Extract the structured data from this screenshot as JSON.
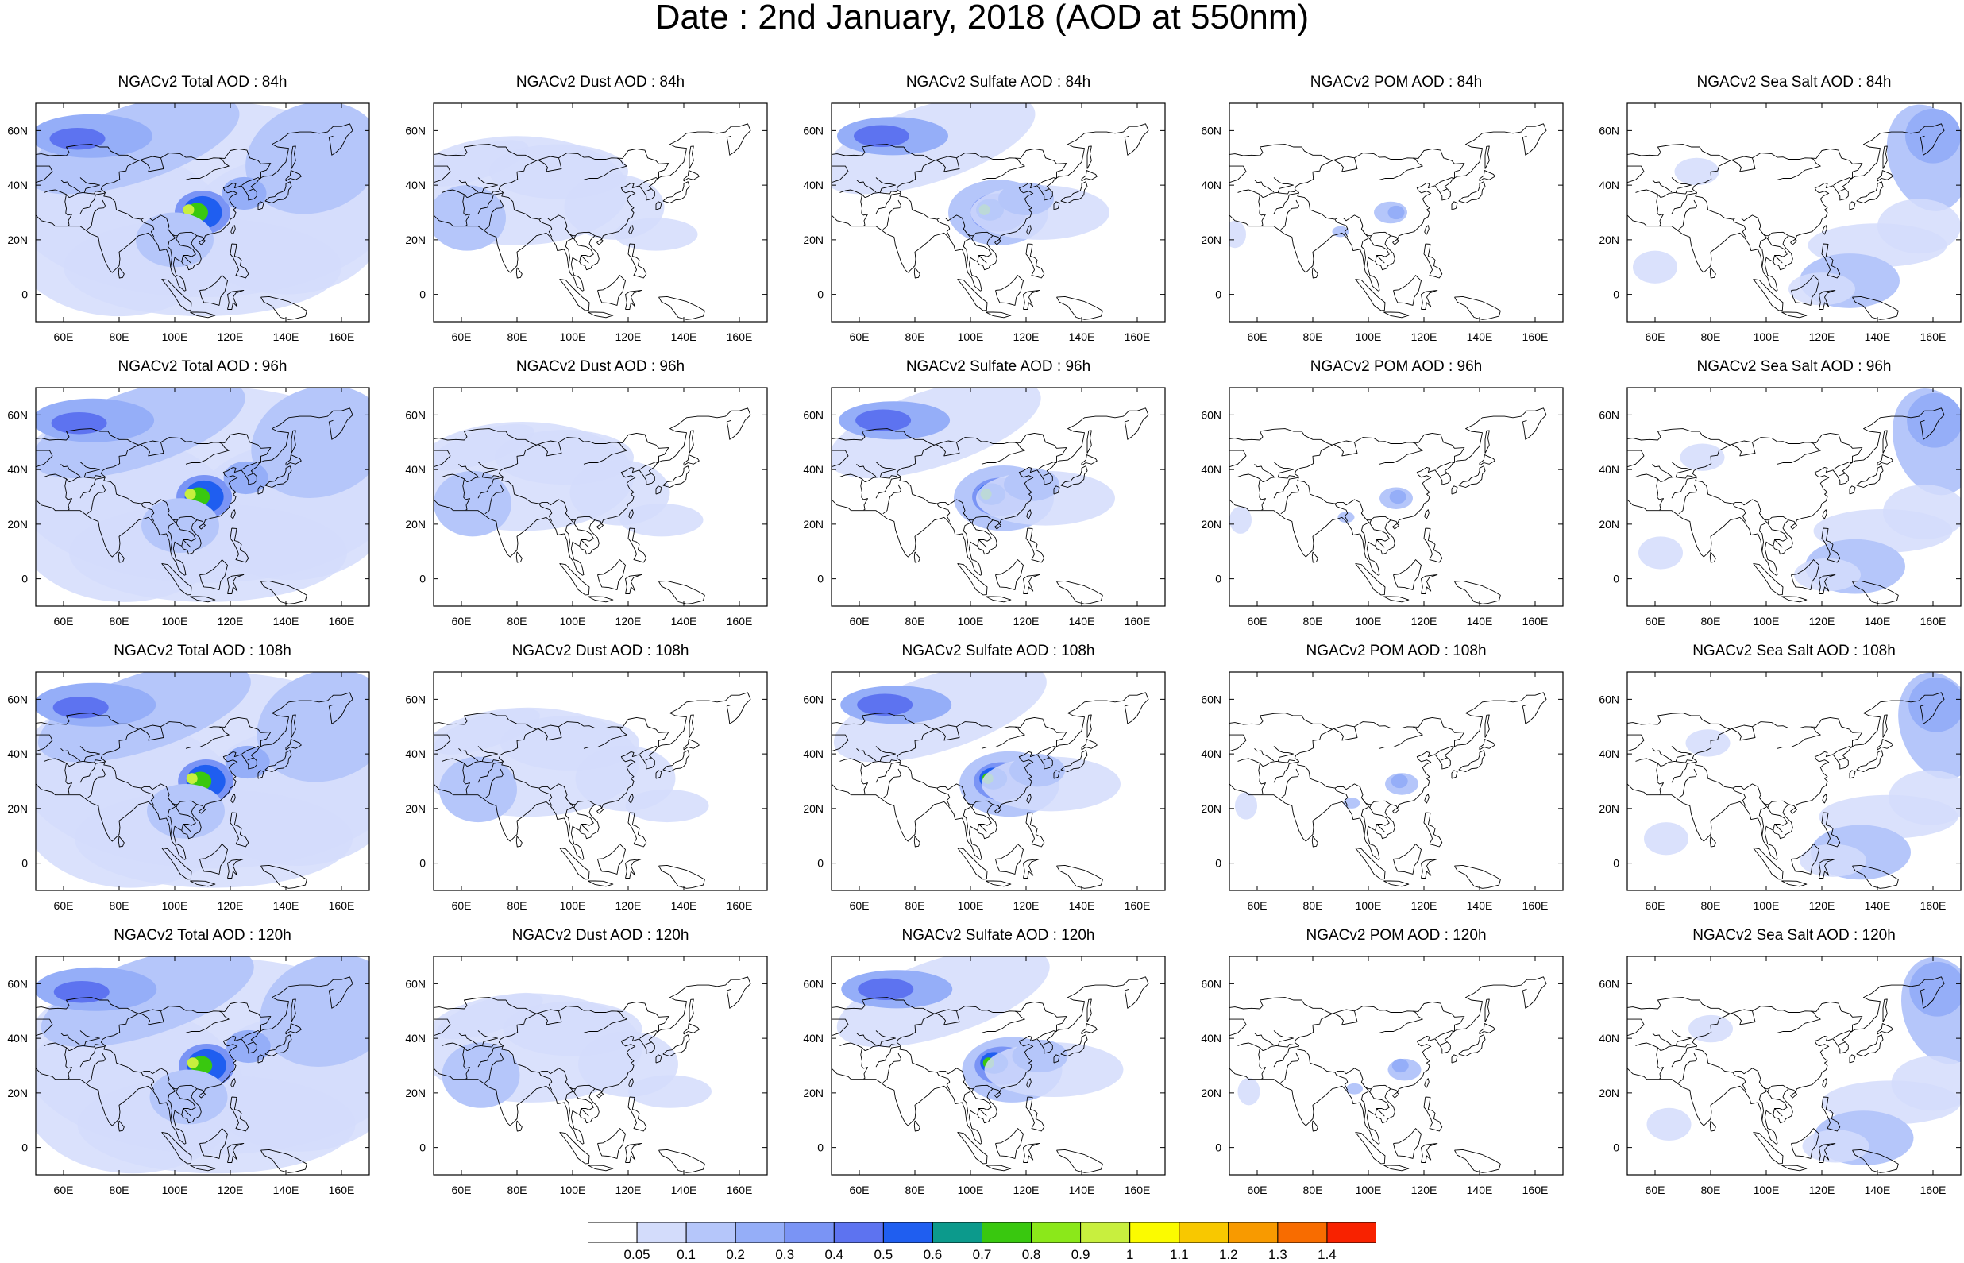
{
  "title": "Date : 2nd January, 2018 (AOD at 550nm)",
  "panels": [
    [
      {
        "title": "NGACv2 Total AOD : 84h",
        "species": "total"
      },
      {
        "title": "NGACv2 Dust AOD : 84h",
        "species": "dust"
      },
      {
        "title": "NGACv2 Sulfate AOD : 84h",
        "species": "sulfate"
      },
      {
        "title": "NGACv2 POM AOD : 84h",
        "species": "pom"
      },
      {
        "title": "NGACv2 Sea Salt AOD : 84h",
        "species": "seasalt"
      }
    ],
    [
      {
        "title": "NGACv2 Total AOD : 96h",
        "species": "total"
      },
      {
        "title": "NGACv2 Dust AOD : 96h",
        "species": "dust"
      },
      {
        "title": "NGACv2 Sulfate AOD : 96h",
        "species": "sulfate"
      },
      {
        "title": "NGACv2 POM AOD : 96h",
        "species": "pom"
      },
      {
        "title": "NGACv2 Sea Salt AOD : 96h",
        "species": "seasalt"
      }
    ],
    [
      {
        "title": "NGACv2 Total AOD : 108h",
        "species": "total"
      },
      {
        "title": "NGACv2 Dust AOD : 108h",
        "species": "dust"
      },
      {
        "title": "NGACv2 Sulfate AOD : 108h",
        "species": "sulfate"
      },
      {
        "title": "NGACv2 POM AOD : 108h",
        "species": "pom"
      },
      {
        "title": "NGACv2 Sea Salt AOD : 108h",
        "species": "seasalt"
      }
    ],
    [
      {
        "title": "NGACv2 Total AOD : 120h",
        "species": "total"
      },
      {
        "title": "NGACv2 Dust AOD : 120h",
        "species": "dust"
      },
      {
        "title": "NGACv2 Sulfate AOD : 120h",
        "species": "sulfate"
      },
      {
        "title": "NGACv2 POM AOD : 120h",
        "species": "pom"
      },
      {
        "title": "NGACv2 Sea Salt  AOD : 120h",
        "species": "seasalt"
      }
    ]
  ],
  "x_ticks": [
    "60E",
    "80E",
    "100E",
    "120E",
    "140E",
    "160E"
  ],
  "x_tick_values": [
    60,
    80,
    100,
    120,
    140,
    160
  ],
  "y_ticks": [
    "60N",
    "40N",
    "20N",
    "0"
  ],
  "y_tick_values": [
    60,
    40,
    20,
    0
  ],
  "lon_range": [
    50,
    170
  ],
  "lat_range": [
    -10,
    70
  ],
  "colorbar": {
    "labels": [
      "0.05",
      "0.1",
      "0.2",
      "0.3",
      "0.4",
      "0.5",
      "0.6",
      "0.7",
      "0.8",
      "0.9",
      "1",
      "1.1",
      "1.2",
      "1.3",
      "1.4"
    ],
    "colors": [
      "#ffffff",
      "#d3dcfb",
      "#b5c6fa",
      "#95aef8",
      "#7a94f5",
      "#5d73f0",
      "#1f5ef0",
      "#0c9a8c",
      "#39c80f",
      "#8be81a",
      "#c8ef3e",
      "#fbfb00",
      "#f8c800",
      "#f89a00",
      "#f86c00",
      "#f82200"
    ]
  }
}
